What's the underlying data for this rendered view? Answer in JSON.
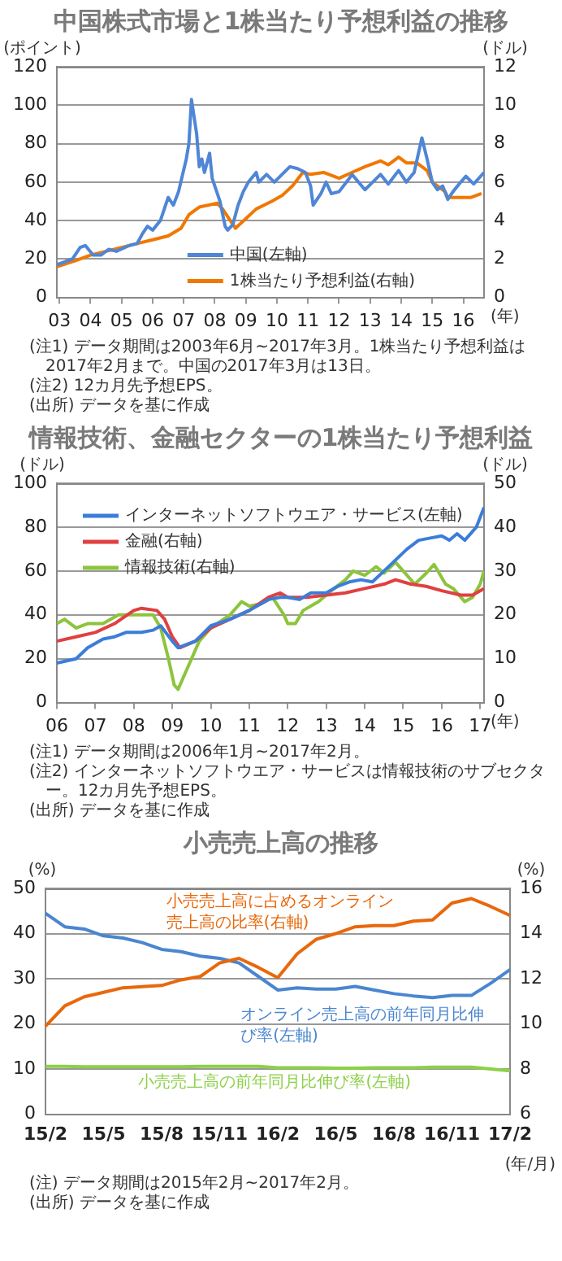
{
  "chart_data": [
    {
      "type": "line",
      "title": "中国株式市場と1株当たり予想利益の推移",
      "ylabel": "(ポイント)",
      "y2label": "(ドル)",
      "xlabel": "(年)",
      "xlim": [
        "2003-06",
        "2017-03"
      ],
      "xticks": [
        {
          "value": "2003-07",
          "label": "03"
        },
        {
          "value": "2004-07",
          "label": "04"
        },
        {
          "value": "2005-07",
          "label": "05"
        },
        {
          "value": "2006-07",
          "label": "06"
        },
        {
          "value": "2007-07",
          "label": "07"
        },
        {
          "value": "2008-07",
          "label": "08"
        },
        {
          "value": "2009-07",
          "label": "09"
        },
        {
          "value": "2010-07",
          "label": "10"
        },
        {
          "value": "2011-07",
          "label": "11"
        },
        {
          "value": "2012-07",
          "label": "12"
        },
        {
          "value": "2013-07",
          "label": "13"
        },
        {
          "value": "2014-07",
          "label": "14"
        },
        {
          "value": "2015-07",
          "label": "15"
        },
        {
          "value": "2016-07",
          "label": "16"
        }
      ],
      "ylim": [
        0,
        120
      ],
      "yticks": [
        0,
        20,
        40,
        60,
        80,
        100,
        120
      ],
      "y2lim": [
        0,
        12
      ],
      "y2ticks": [
        0,
        2,
        4,
        6,
        8,
        10,
        12
      ],
      "grid": "y",
      "legend": "bottom",
      "marker": "none",
      "series": [
        {
          "name": "中国(左軸)",
          "color": "#4f86d6",
          "x": [
            "2003-06",
            "2003-12",
            "2004-03",
            "2004-05",
            "2004-08",
            "2004-11",
            "2005-02",
            "2005-05",
            "2005-10",
            "2006-01",
            "2006-03",
            "2006-05",
            "2006-07",
            "2006-10",
            "2007-01",
            "2007-03",
            "2007-05",
            "2007-08",
            "2007-09",
            "2007-10",
            "2007-12",
            "2008-01",
            "2008-02",
            "2008-03",
            "2008-05",
            "2008-06",
            "2008-09",
            "2008-11",
            "2008-12",
            "2009-02",
            "2009-04",
            "2009-06",
            "2009-08",
            "2009-11",
            "2009-12",
            "2010-03",
            "2010-06",
            "2010-09",
            "2010-12",
            "2011-03",
            "2011-06",
            "2011-08",
            "2011-09",
            "2011-12",
            "2012-02",
            "2012-04",
            "2012-07",
            "2012-11",
            "2012-12",
            "2013-05",
            "2013-08",
            "2013-11",
            "2014-02",
            "2014-06",
            "2014-09",
            "2014-12",
            "2015-03",
            "2015-05",
            "2015-07",
            "2015-09",
            "2015-11",
            "2016-01",
            "2016-03",
            "2016-06",
            "2016-08",
            "2016-11",
            "2017-03"
          ],
          "values": [
            17,
            20,
            26,
            27,
            22,
            22,
            25,
            24,
            27,
            28,
            33,
            37,
            35,
            40,
            52,
            48,
            55,
            72,
            80,
            103,
            85,
            68,
            72,
            65,
            75,
            62,
            50,
            37,
            35,
            38,
            48,
            55,
            60,
            65,
            60,
            64,
            60,
            64,
            68,
            67,
            65,
            58,
            48,
            54,
            60,
            54,
            55,
            62,
            64,
            56,
            60,
            64,
            59,
            66,
            60,
            65,
            83,
            72,
            60,
            56,
            58,
            51,
            55,
            60,
            63,
            59,
            65
          ]
        },
        {
          "name": "1株当たり予想利益(右軸)",
          "color": "#f07800",
          "axis": "y2",
          "x": [
            "2003-06",
            "2004-01",
            "2004-07",
            "2005-01",
            "2005-07",
            "2006-01",
            "2006-07",
            "2007-01",
            "2007-06",
            "2007-09",
            "2008-01",
            "2008-08",
            "2008-10",
            "2009-03",
            "2009-07",
            "2009-11",
            "2010-05",
            "2010-09",
            "2011-01",
            "2011-05",
            "2011-08",
            "2012-01",
            "2012-07",
            "2012-12",
            "2013-05",
            "2013-11",
            "2014-02",
            "2014-06",
            "2014-09",
            "2015-01",
            "2015-05",
            "2015-07",
            "2015-12",
            "2016-01",
            "2016-07",
            "2016-10",
            "2017-02"
          ],
          "values": [
            1.6,
            1.9,
            2.2,
            2.4,
            2.6,
            2.8,
            3.0,
            3.2,
            3.6,
            4.3,
            4.7,
            4.9,
            4.6,
            3.6,
            4.1,
            4.6,
            5.0,
            5.3,
            5.8,
            6.5,
            6.4,
            6.5,
            6.2,
            6.5,
            6.8,
            7.1,
            6.9,
            7.3,
            7.0,
            7.0,
            6.6,
            6.0,
            5.5,
            5.2,
            5.2,
            5.2,
            5.4
          ]
        }
      ],
      "annotations": [
        "(注1) データ期間は2003年6月~2017年3月。1株当たり予想利益は2017年2月まで。中国の2017年3月は13日。",
        "(注2) 12カ月先予想EPS。",
        "(出所) データを基に作成"
      ]
    },
    {
      "type": "line",
      "title": "情報技術、金融セクターの1株当たり予想利益",
      "ylabel": "(ドル)",
      "y2label": "(ドル)",
      "xlabel": "(年)",
      "xlim": [
        2006,
        2017.1
      ],
      "xticks": [
        {
          "value": 2006,
          "label": "06"
        },
        {
          "value": 2007,
          "label": "07"
        },
        {
          "value": 2008,
          "label": "08"
        },
        {
          "value": 2009,
          "label": "09"
        },
        {
          "value": 2010,
          "label": "10"
        },
        {
          "value": 2011,
          "label": "11"
        },
        {
          "value": 2012,
          "label": "12"
        },
        {
          "value": 2013,
          "label": "13"
        },
        {
          "value": 2014,
          "label": "14"
        },
        {
          "value": 2015,
          "label": "15"
        },
        {
          "value": 2016,
          "label": "16"
        },
        {
          "value": 2017,
          "label": "17"
        }
      ],
      "ylim": [
        0,
        100
      ],
      "yticks": [
        0,
        20,
        40,
        60,
        80,
        100
      ],
      "y2lim": [
        0,
        50
      ],
      "y2ticks": [
        0,
        10,
        20,
        30,
        40,
        50
      ],
      "grid": "y",
      "legend": "top left",
      "marker": "none",
      "series": [
        {
          "name": "インターネットソフトウエア・サービス(左軸)",
          "color": "#3c7dd9",
          "x": [
            2006.0,
            2006.5,
            2006.8,
            2007.2,
            2007.5,
            2007.8,
            2008.2,
            2008.5,
            2008.7,
            2009.0,
            2009.15,
            2009.6,
            2010.0,
            2010.5,
            2011.0,
            2011.5,
            2011.8,
            2012.0,
            2012.3,
            2012.6,
            2013.0,
            2013.3,
            2013.6,
            2013.9,
            2014.2,
            2014.5,
            2014.8,
            2015.1,
            2015.4,
            2015.7,
            2016.0,
            2016.2,
            2016.4,
            2016.6,
            2016.9,
            2017.1
          ],
          "values": [
            18,
            20,
            25,
            29,
            30,
            32,
            32,
            33,
            35,
            28,
            25,
            28,
            35,
            38,
            42,
            47,
            48,
            48,
            47,
            50,
            50,
            53,
            55,
            56,
            55,
            60,
            65,
            70,
            74,
            75,
            76,
            74,
            77,
            74,
            80,
            89
          ]
        },
        {
          "name": "金融(右軸)",
          "color": "#e04040",
          "axis": "y2",
          "x": [
            2006.0,
            2006.5,
            2007.0,
            2007.5,
            2008.0,
            2008.2,
            2008.6,
            2008.8,
            2009.0,
            2009.2,
            2009.6,
            2010.0,
            2010.5,
            2011.0,
            2011.5,
            2011.8,
            2012.0,
            2012.5,
            2013.0,
            2013.5,
            2014.0,
            2014.5,
            2014.8,
            2015.2,
            2015.6,
            2016.0,
            2016.5,
            2016.8,
            2017.1
          ],
          "values": [
            14,
            15,
            16,
            18,
            21,
            21.5,
            21,
            19,
            15,
            12.5,
            14,
            17,
            19,
            21,
            24,
            25,
            24,
            24,
            24.5,
            25,
            26,
            27,
            28,
            27,
            26.5,
            25.5,
            24.5,
            24.5,
            26
          ]
        },
        {
          "name": "情報技術(右軸)",
          "color": "#8cc43c",
          "axis": "y2",
          "x": [
            2006.0,
            2006.2,
            2006.5,
            2006.8,
            2007.2,
            2007.6,
            2008.0,
            2008.5,
            2008.7,
            2008.9,
            2009.05,
            2009.15,
            2009.4,
            2009.7,
            2010.0,
            2010.5,
            2010.8,
            2011.0,
            2011.3,
            2011.6,
            2011.9,
            2012.0,
            2012.2,
            2012.4,
            2012.8,
            2013.2,
            2013.5,
            2013.7,
            2014.0,
            2014.3,
            2014.5,
            2014.8,
            2015.0,
            2015.3,
            2015.6,
            2015.8,
            2016.1,
            2016.3,
            2016.6,
            2016.8,
            2017.0,
            2017.1
          ],
          "values": [
            18,
            19,
            17,
            18,
            18,
            20,
            20,
            20,
            17,
            10,
            4,
            3,
            8,
            14,
            17,
            20,
            23,
            22,
            22.5,
            24,
            20,
            18,
            18,
            21,
            23,
            26,
            28,
            30,
            29,
            31,
            29.5,
            32,
            30,
            27,
            29.5,
            31.5,
            27,
            26,
            23,
            24,
            27,
            30
          ]
        }
      ],
      "annotations": [
        "(注1) データ期間は2006年1月~2017年2月。",
        "(注2) インターネットソフトウエア・サービスは情報技術のサブセクター。12カ月先予想EPS。",
        "(出所) データを基に作成"
      ]
    },
    {
      "type": "line",
      "title": "小売売上高の推移",
      "ylabel": "(%)",
      "y2label": "(%)",
      "xlabel": "(年/月)",
      "categories": [
        "15/2",
        null,
        null,
        "15/5",
        null,
        null,
        "15/8",
        null,
        null,
        "15/11",
        null,
        null,
        "16/2",
        null,
        null,
        "16/5",
        null,
        null,
        "16/8",
        null,
        null,
        "16/11",
        null,
        null,
        "17/2"
      ],
      "ylim": [
        0,
        50
      ],
      "yticks": [
        0,
        10,
        20,
        30,
        40,
        50
      ],
      "y2lim": [
        6,
        16
      ],
      "y2ticks": [
        6,
        8,
        10,
        12,
        14,
        16
      ],
      "grid": "y",
      "legend": false,
      "marker": "none",
      "series": [
        {
          "name": "小売売上高に占めるオンライン売上高の比率(右軸)",
          "color": "#e8680c",
          "axis": "y2",
          "values": [
            9.9,
            10.8,
            11.2,
            11.4,
            11.6,
            11.65,
            11.7,
            11.95,
            12.1,
            12.7,
            12.9,
            12.5,
            12.05,
            13.1,
            13.75,
            14.0,
            14.3,
            14.35,
            14.35,
            14.55,
            14.6,
            15.35,
            15.55,
            15.2,
            14.8
          ]
        },
        {
          "name": "オンライン売上高の前年同月比伸び率(左軸)",
          "color": "#4a86d0",
          "values": [
            44.5,
            41.5,
            41,
            39.5,
            39,
            38,
            36.5,
            36,
            35,
            34.5,
            33.5,
            30.5,
            27.5,
            28,
            27.7,
            27.7,
            28.3,
            27.5,
            26.7,
            26.2,
            25.8,
            26.3,
            26.3,
            29,
            32
          ]
        },
        {
          "name": "小売売上高の前年同月比伸び率(左軸)",
          "color": "#8cd048",
          "values": [
            10.6,
            10.6,
            10.5,
            10.5,
            10.5,
            10.5,
            10.5,
            10.5,
            10.6,
            10.6,
            10.6,
            10.6,
            10.3,
            10.3,
            10.3,
            10.2,
            10.2,
            10.3,
            10.3,
            10.3,
            10.4,
            10.4,
            10.4,
            10.0,
            9.6
          ]
        }
      ],
      "annotations": [
        "(注) データ期間は2015年2月~2017年2月。",
        "(出所) データを基に作成"
      ]
    }
  ]
}
